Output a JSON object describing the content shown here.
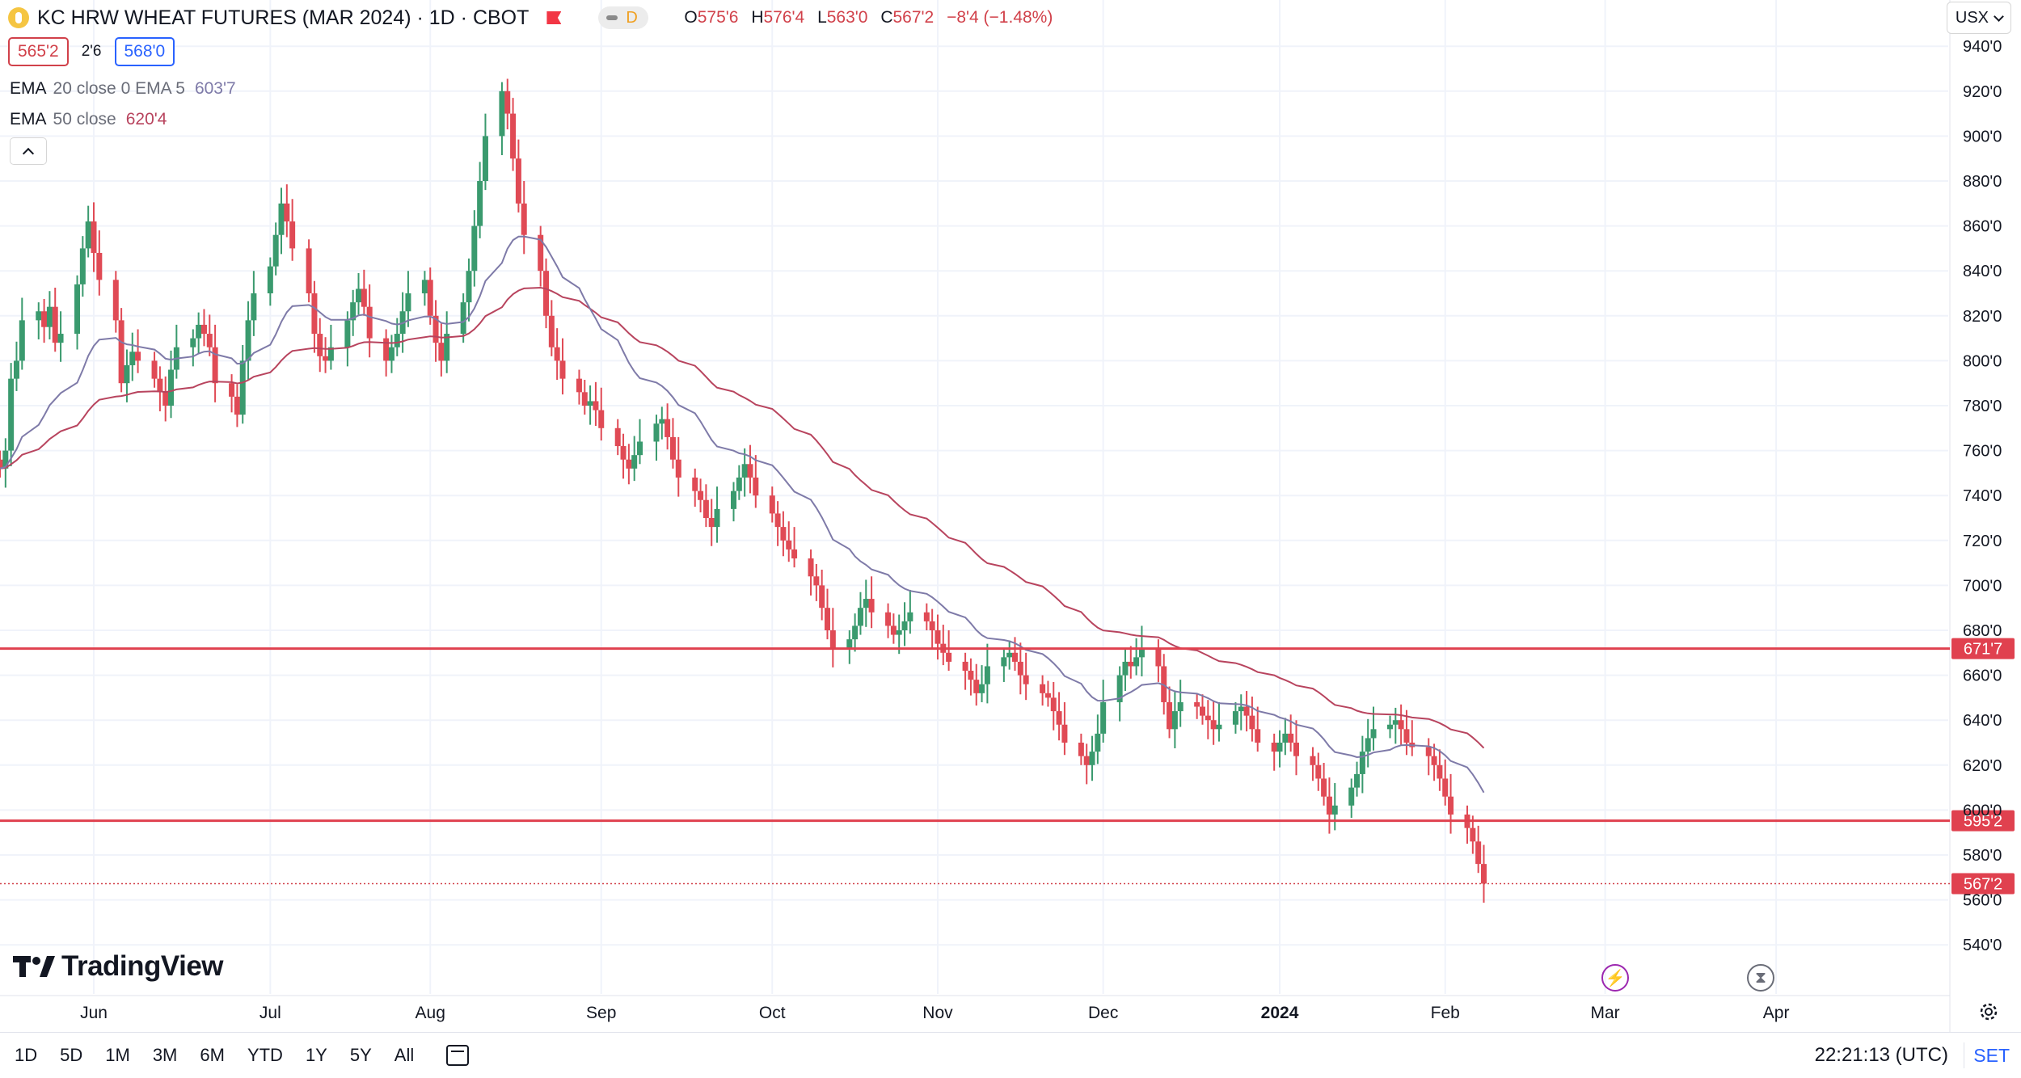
{
  "header": {
    "title": "KC HRW WHEAT FUTURES (MAR 2024) · 1D · CBOT",
    "pill_letter": "D",
    "ohlc": {
      "o_key": "O",
      "o_val": "575'6",
      "h_key": "H",
      "h_val": "576'4",
      "l_key": "L",
      "l_val": "563'0",
      "c_key": "C",
      "c_val": "567'2",
      "change": "−8'4 (−1.48%)"
    },
    "currency": "USX"
  },
  "quote": {
    "bid": "565'2",
    "spread": "2'6",
    "ask": "568'0"
  },
  "indicators": [
    {
      "name": "EMA",
      "params": "20 close 0 EMA 5",
      "value": "603'7",
      "color": "#7e7aa8"
    },
    {
      "name": "EMA",
      "params": "50 close",
      "value": "620'4",
      "color": "#b8445e"
    }
  ],
  "logo": {
    "text": "TradingView"
  },
  "footer": {
    "ranges": [
      "1D",
      "5D",
      "1M",
      "3M",
      "6M",
      "YTD",
      "1Y",
      "5Y",
      "All"
    ],
    "clock": "22:21:13 (UTC)",
    "set_label": "SET"
  },
  "colors": {
    "up": "#26a69a",
    "down": "#f23645",
    "body_up": "#3a9a6e",
    "body_down": "#e04a55",
    "level": "#e0414f",
    "grid": "#f0f3fa"
  },
  "icons": [
    "tradingview-logo-icon",
    "bolt-icon",
    "hourglass-icon",
    "gear-icon",
    "calendar-icon",
    "chevron-down-icon",
    "chevron-up-icon",
    "flag-icon",
    "symbol-icon"
  ],
  "chart_data": {
    "type": "candlestick",
    "title": "KC HRW WHEAT FUTURES (MAR 2024) · 1D · CBOT",
    "ylim": [
      530,
      950
    ],
    "y_ticks": [
      540,
      560,
      580,
      600,
      620,
      640,
      660,
      680,
      700,
      720,
      740,
      760,
      780,
      800,
      820,
      840,
      860,
      880,
      900,
      920,
      940
    ],
    "y_tick_labels": [
      "540'0",
      "560'0",
      "580'0",
      "600'0",
      "620'0",
      "640'0",
      "660'0",
      "680'0",
      "700'0",
      "720'0",
      "740'0",
      "760'0",
      "780'0",
      "800'0",
      "820'0",
      "840'0",
      "860'0",
      "880'0",
      "900'0",
      "920'0",
      "940'0"
    ],
    "x_labels": [
      {
        "label": "Jun",
        "date": "2023-06-01",
        "bold": false
      },
      {
        "label": "Jul",
        "date": "2023-07-03",
        "bold": false
      },
      {
        "label": "Aug",
        "date": "2023-08-01",
        "bold": false
      },
      {
        "label": "Sep",
        "date": "2023-09-01",
        "bold": false
      },
      {
        "label": "Oct",
        "date": "2023-10-02",
        "bold": false
      },
      {
        "label": "Nov",
        "date": "2023-11-01",
        "bold": false
      },
      {
        "label": "Dec",
        "date": "2023-12-01",
        "bold": false
      },
      {
        "label": "2024",
        "date": "2024-01-02",
        "bold": true
      },
      {
        "label": "Feb",
        "date": "2024-02-01",
        "bold": false
      },
      {
        "label": "Mar",
        "date": "2024-03-01",
        "bold": false
      },
      {
        "label": "Apr",
        "date": "2024-04-01",
        "bold": false
      }
    ],
    "x_range": [
      "2023-05-15",
      "2024-04-30"
    ],
    "first_bar_date": "2023-05-15",
    "horizontal_levels": [
      {
        "value": 671.875,
        "label": "671'7"
      },
      {
        "value": 595.25,
        "label": "595'2"
      }
    ],
    "last_price": {
      "value": 567.25,
      "label": "567'2"
    },
    "closes": [
      752,
      760,
      792,
      800,
      818,
      822,
      815,
      824,
      808,
      812,
      834,
      850,
      862,
      848,
      836,
      818,
      790,
      798,
      804,
      800,
      792,
      786,
      780,
      796,
      806,
      810,
      816,
      812,
      806,
      790,
      784,
      776,
      800,
      818,
      830,
      842,
      856,
      870,
      862,
      850,
      830,
      812,
      802,
      800,
      806,
      818,
      826,
      832,
      824,
      810,
      800,
      806,
      812,
      822,
      830,
      836,
      820,
      808,
      800,
      812,
      826,
      840,
      860,
      880,
      900,
      920,
      910,
      890,
      870,
      856,
      840,
      820,
      806,
      800,
      792,
      786,
      780,
      782,
      778,
      770,
      762,
      756,
      752,
      758,
      764,
      772,
      774,
      766,
      756,
      748,
      742,
      738,
      730,
      726,
      734,
      742,
      748,
      754,
      748,
      740,
      732,
      726,
      720,
      716,
      712,
      704,
      700,
      690,
      680,
      672,
      676,
      682,
      690,
      694,
      688,
      682,
      678,
      680,
      684,
      688,
      684,
      680,
      674,
      670,
      666,
      662,
      658,
      652,
      656,
      664,
      668,
      670,
      666,
      660,
      656,
      652,
      650,
      644,
      638,
      630,
      624,
      620,
      626,
      634,
      648,
      660,
      666,
      664,
      668,
      672,
      664,
      648,
      636,
      644,
      648,
      646,
      642,
      640,
      636,
      638,
      644,
      646,
      642,
      636,
      630,
      626,
      630,
      634,
      630,
      624,
      620,
      614,
      606,
      598,
      602,
      610,
      616,
      626,
      632,
      636,
      638,
      640,
      636,
      630,
      628,
      624,
      620,
      614,
      606,
      598,
      592,
      586,
      576,
      567.25
    ]
  }
}
